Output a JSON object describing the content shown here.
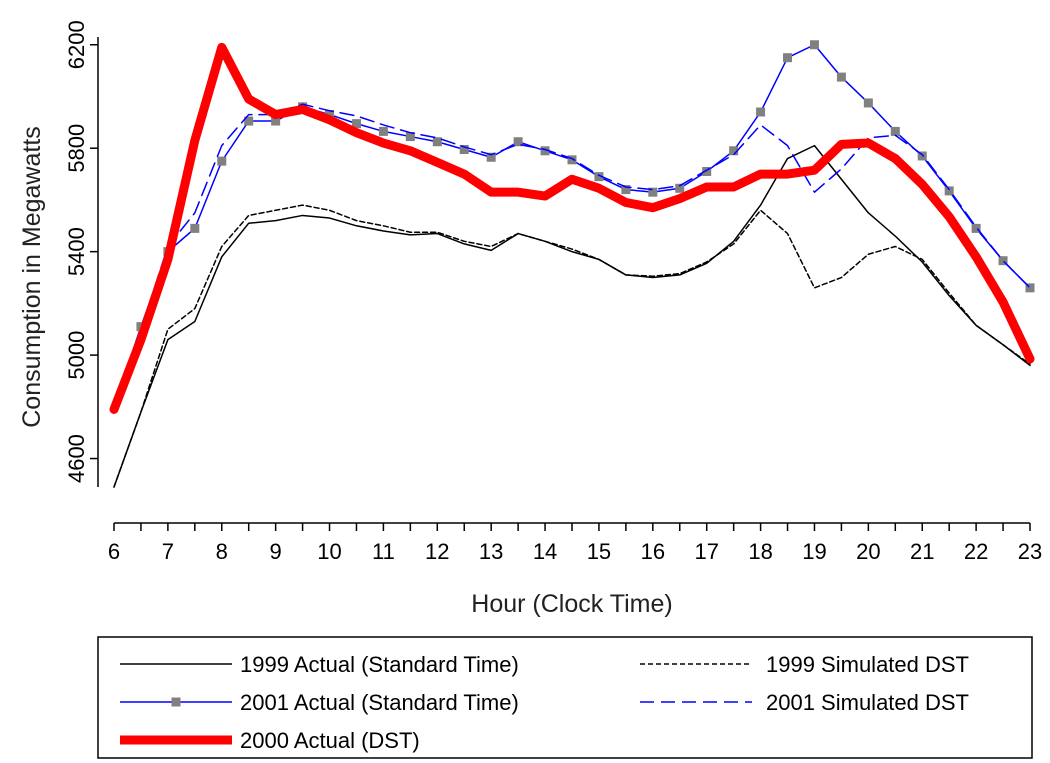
{
  "chart_data": {
    "type": "line",
    "title": "",
    "xlabel": "Hour (Clock Time)",
    "ylabel": "Consumption in Megawatts",
    "xlim": [
      6,
      23
    ],
    "ylim": [
      4490,
      6230
    ],
    "x_ticks": [
      6,
      7,
      8,
      9,
      10,
      11,
      12,
      13,
      14,
      15,
      16,
      17,
      18,
      19,
      20,
      21,
      22,
      23
    ],
    "y_ticks": [
      4600,
      5000,
      5400,
      5800,
      6200
    ],
    "grid": false,
    "legend_position": "bottom",
    "x": [
      6,
      6.5,
      7,
      7.5,
      8,
      8.5,
      9,
      9.5,
      10,
      10.5,
      11,
      11.5,
      12,
      12.5,
      13,
      13.5,
      14,
      14.5,
      15,
      15.5,
      16,
      16.5,
      17,
      17.5,
      18,
      18.5,
      19,
      19.5,
      20,
      20.5,
      21,
      21.5,
      22,
      22.5,
      23
    ],
    "series": [
      {
        "name": "1999 Actual (Standard Time)",
        "color": "#000000",
        "style": "solid",
        "values": [
          4490,
          4780,
          5060,
          5130,
          5380,
          5510,
          5520,
          5540,
          5530,
          5500,
          5480,
          5465,
          5470,
          5430,
          5405,
          5470,
          5440,
          5400,
          5370,
          5310,
          5300,
          5310,
          5355,
          5440,
          5580,
          5760,
          5810,
          5680,
          5550,
          5460,
          5360,
          5230,
          5115,
          5040,
          4960
        ]
      },
      {
        "name": "1999 Simulated DST",
        "color": "#000000",
        "style": "dotted",
        "values": [
          4490,
          4780,
          5100,
          5180,
          5420,
          5540,
          5560,
          5580,
          5560,
          5520,
          5500,
          5475,
          5475,
          5440,
          5420,
          5470,
          5440,
          5410,
          5370,
          5310,
          5305,
          5315,
          5360,
          5430,
          5560,
          5470,
          5260,
          5300,
          5390,
          5420,
          5370,
          5240,
          5115,
          5040,
          4965
        ]
      },
      {
        "name": "2001 Actual (Standard Time)",
        "color": "#0000ff",
        "style": "solid",
        "marker": "square",
        "values": [
          4800,
          5110,
          5400,
          5490,
          5750,
          5905,
          5905,
          5960,
          5930,
          5895,
          5865,
          5845,
          5825,
          5795,
          5765,
          5825,
          5790,
          5755,
          5690,
          5640,
          5630,
          5645,
          5710,
          5790,
          5940,
          6150,
          6200,
          6075,
          5975,
          5865,
          5770,
          5635,
          5490,
          5365,
          5260
        ]
      },
      {
        "name": "2001 Simulated DST",
        "color": "#0000ff",
        "style": "dashed",
        "values": [
          4800,
          5100,
          5420,
          5550,
          5810,
          5930,
          5930,
          5970,
          5945,
          5925,
          5890,
          5860,
          5840,
          5805,
          5775,
          5815,
          5795,
          5760,
          5695,
          5650,
          5640,
          5655,
          5715,
          5775,
          5890,
          5810,
          5630,
          5720,
          5840,
          5850,
          5775,
          5640,
          5495,
          5365,
          5260
        ]
      },
      {
        "name": "2000 Actual (DST)",
        "color": "#ff0000",
        "style": "thick",
        "values": [
          4790,
          5060,
          5370,
          5830,
          6190,
          5990,
          5930,
          5950,
          5910,
          5860,
          5820,
          5790,
          5745,
          5700,
          5630,
          5630,
          5615,
          5680,
          5645,
          5590,
          5570,
          5605,
          5650,
          5650,
          5700,
          5700,
          5715,
          5815,
          5820,
          5760,
          5660,
          5535,
          5380,
          5205,
          4985
        ]
      }
    ]
  }
}
